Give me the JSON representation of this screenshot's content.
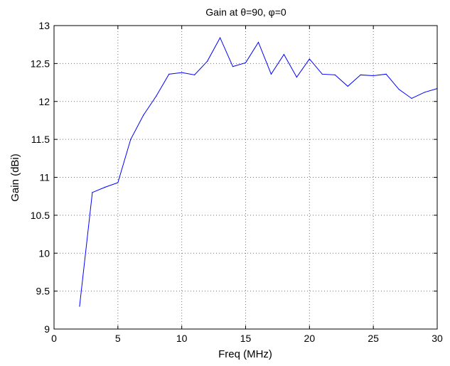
{
  "chart_data": {
    "type": "line",
    "title_parts": {
      "prefix": "Gain at ",
      "theta_symbol": "θ",
      "theta_value": "=90, ",
      "phi_symbol": "φ",
      "phi_value": "=0"
    },
    "xlabel": "Freq (MHz)",
    "ylabel": "Gain (dBi)",
    "xlim": [
      0,
      30
    ],
    "ylim": [
      9,
      13
    ],
    "xticks": [
      0,
      5,
      10,
      15,
      20,
      25,
      30
    ],
    "yticks": [
      9,
      9.5,
      10,
      10.5,
      11,
      11.5,
      12,
      12.5,
      13
    ],
    "grid": true,
    "series": [
      {
        "color": "#0000ff",
        "x": [
          2,
          3,
          4,
          5,
          6,
          7,
          8,
          9,
          10,
          11,
          12,
          13,
          14,
          15,
          16,
          17,
          18,
          19,
          20,
          21,
          22,
          23,
          24,
          25,
          26,
          27,
          28,
          29,
          30
        ],
        "y": [
          9.3,
          10.8,
          10.87,
          10.93,
          11.5,
          11.82,
          12.07,
          12.36,
          12.38,
          12.35,
          12.53,
          12.84,
          12.46,
          12.51,
          12.78,
          12.36,
          12.62,
          12.32,
          12.56,
          12.36,
          12.35,
          12.2,
          12.35,
          12.34,
          12.36,
          12.16,
          12.04,
          12.12,
          12.17
        ]
      }
    ]
  }
}
